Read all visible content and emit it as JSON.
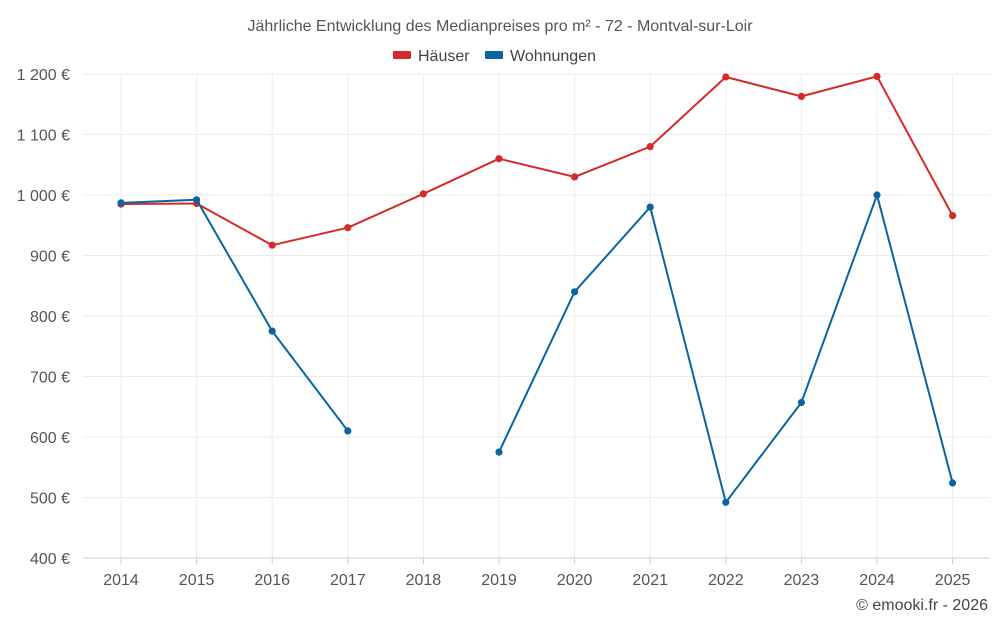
{
  "chart_data": {
    "type": "line",
    "title": "Jährliche Entwicklung des Medianpreises pro m² - 72 - Montval-sur-Loir",
    "categories": [
      "2014",
      "2015",
      "2016",
      "2017",
      "2018",
      "2019",
      "2020",
      "2021",
      "2022",
      "2023",
      "2024",
      "2025"
    ],
    "ylim": [
      400,
      1200
    ],
    "yticks": [
      400,
      500,
      600,
      700,
      800,
      900,
      1000,
      1100,
      1200
    ],
    "ytick_labels": [
      "400 €",
      "500 €",
      "600 €",
      "700 €",
      "800 €",
      "900 €",
      "1 000 €",
      "1 100 €",
      "1 200 €"
    ],
    "grid": true,
    "legend_position": "top-center",
    "series": [
      {
        "name": "Häuser",
        "color": "#d42a2a",
        "values": [
          985,
          986,
          917,
          946,
          1002,
          1060,
          1030,
          1080,
          1195,
          1163,
          1196,
          966
        ]
      },
      {
        "name": "Wohnungen",
        "color": "#0a64a0",
        "values": [
          987,
          992,
          775,
          610,
          null,
          575,
          840,
          980,
          492,
          657,
          1000,
          524
        ]
      }
    ]
  },
  "credit": "© emooki.fr - 2026"
}
